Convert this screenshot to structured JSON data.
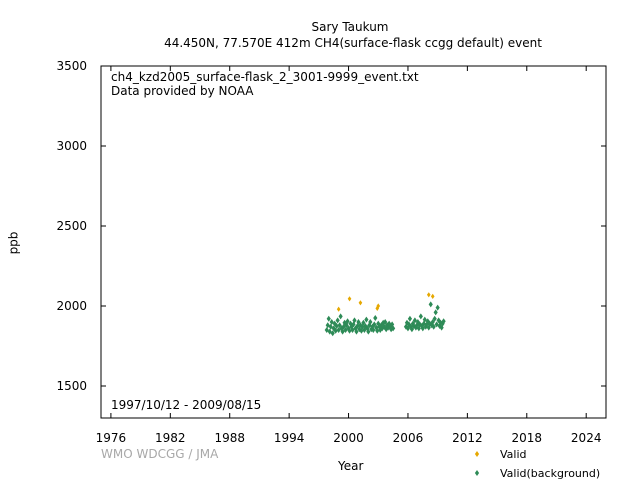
{
  "header": {
    "station": "Sary Taukum",
    "subtitle": "44.450N, 77.570E 412m    CH4(surface-flask ccgg default) event"
  },
  "info": {
    "filename": "ch4_kzd2005_surface-flask_2_3001-9999_event.txt",
    "provider": "Data provided by NOAA",
    "period": "1997/10/12 - 2009/08/15"
  },
  "watermark": "WMO WDCGG / JMA",
  "colors": {
    "valid": "#e6a800",
    "background": "#2e8b57",
    "axis": "#000000"
  },
  "chart_data": {
    "type": "scatter",
    "xlabel": "Year",
    "ylabel": "ppb",
    "xlim": [
      1975,
      2026
    ],
    "ylim": [
      1300,
      3500
    ],
    "xticks": [
      1976,
      1982,
      1988,
      1994,
      2000,
      2006,
      2012,
      2018,
      2024
    ],
    "yticks": [
      1500,
      2000,
      2500,
      3000,
      3500
    ],
    "legend_position": "bottom-right",
    "series": [
      {
        "name": "Valid",
        "marker": "diamond",
        "points": [
          [
            1999.0,
            1980
          ],
          [
            2000.1,
            2045
          ],
          [
            2001.2,
            2020
          ],
          [
            2003.0,
            2000
          ],
          [
            2002.9,
            1985
          ],
          [
            2008.1,
            2070
          ],
          [
            2008.5,
            2060
          ]
        ]
      },
      {
        "name": "Valid(background)",
        "marker": "diamond",
        "points": [
          [
            1997.8,
            1850
          ],
          [
            1997.9,
            1880
          ],
          [
            1998.0,
            1920
          ],
          [
            1998.1,
            1840
          ],
          [
            1998.2,
            1870
          ],
          [
            1998.3,
            1900
          ],
          [
            1998.4,
            1830
          ],
          [
            1998.5,
            1860
          ],
          [
            1998.6,
            1890
          ],
          [
            1998.7,
            1845
          ],
          [
            1998.8,
            1875
          ],
          [
            1998.9,
            1910
          ],
          [
            1999.0,
            1850
          ],
          [
            1999.1,
            1880
          ],
          [
            1999.2,
            1935
          ],
          [
            1999.3,
            1860
          ],
          [
            1999.4,
            1840
          ],
          [
            1999.5,
            1870
          ],
          [
            1999.6,
            1895
          ],
          [
            1999.7,
            1850
          ],
          [
            1999.8,
            1880
          ],
          [
            1999.9,
            1905
          ],
          [
            2000.0,
            1860
          ],
          [
            2000.1,
            1845
          ],
          [
            2000.2,
            1890
          ],
          [
            2000.3,
            1870
          ],
          [
            2000.4,
            1850
          ],
          [
            2000.5,
            1885
          ],
          [
            2000.6,
            1910
          ],
          [
            2000.7,
            1860
          ],
          [
            2000.8,
            1840
          ],
          [
            2000.9,
            1875
          ],
          [
            2001.0,
            1900
          ],
          [
            2001.1,
            1855
          ],
          [
            2001.2,
            1880
          ],
          [
            2001.3,
            1845
          ],
          [
            2001.4,
            1870
          ],
          [
            2001.5,
            1895
          ],
          [
            2001.6,
            1850
          ],
          [
            2001.7,
            1875
          ],
          [
            2001.8,
            1915
          ],
          [
            2001.9,
            1860
          ],
          [
            2002.0,
            1840
          ],
          [
            2002.1,
            1880
          ],
          [
            2002.2,
            1900
          ],
          [
            2002.3,
            1855
          ],
          [
            2002.4,
            1870
          ],
          [
            2002.5,
            1850
          ],
          [
            2002.6,
            1885
          ],
          [
            2002.7,
            1925
          ],
          [
            2002.8,
            1865
          ],
          [
            2002.9,
            1845
          ],
          [
            2003.0,
            1890
          ],
          [
            2003.1,
            1870
          ],
          [
            2003.2,
            1850
          ],
          [
            2003.3,
            1880
          ],
          [
            2003.4,
            1860
          ],
          [
            2003.5,
            1895
          ],
          [
            2003.6,
            1870
          ],
          [
            2003.7,
            1900
          ],
          [
            2003.8,
            1855
          ],
          [
            2003.9,
            1880
          ],
          [
            2004.0,
            1865
          ],
          [
            2004.1,
            1890
          ],
          [
            2004.2,
            1870
          ],
          [
            2004.3,
            1855
          ],
          [
            2004.4,
            1885
          ],
          [
            2004.5,
            1860
          ],
          [
            2005.8,
            1870
          ],
          [
            2005.9,
            1895
          ],
          [
            2006.0,
            1860
          ],
          [
            2006.1,
            1885
          ],
          [
            2006.2,
            1920
          ],
          [
            2006.3,
            1870
          ],
          [
            2006.4,
            1855
          ],
          [
            2006.5,
            1890
          ],
          [
            2006.6,
            1875
          ],
          [
            2006.7,
            1910
          ],
          [
            2006.8,
            1865
          ],
          [
            2006.9,
            1880
          ],
          [
            2007.0,
            1900
          ],
          [
            2007.1,
            1860
          ],
          [
            2007.2,
            1885
          ],
          [
            2007.3,
            1935
          ],
          [
            2007.4,
            1875
          ],
          [
            2007.5,
            1860
          ],
          [
            2007.6,
            1890
          ],
          [
            2007.7,
            1915
          ],
          [
            2007.8,
            1870
          ],
          [
            2007.9,
            1885
          ],
          [
            2008.0,
            1905
          ],
          [
            2008.1,
            1865
          ],
          [
            2008.2,
            1890
          ],
          [
            2008.3,
            2010
          ],
          [
            2008.4,
            1880
          ],
          [
            2008.5,
            1900
          ],
          [
            2008.6,
            1870
          ],
          [
            2008.7,
            1920
          ],
          [
            2008.8,
            1960
          ],
          [
            2008.9,
            1885
          ],
          [
            2009.0,
            1990
          ],
          [
            2009.1,
            1910
          ],
          [
            2009.2,
            1875
          ],
          [
            2009.3,
            1895
          ],
          [
            2009.4,
            1865
          ],
          [
            2009.5,
            1890
          ],
          [
            2009.6,
            1905
          ]
        ]
      }
    ]
  }
}
